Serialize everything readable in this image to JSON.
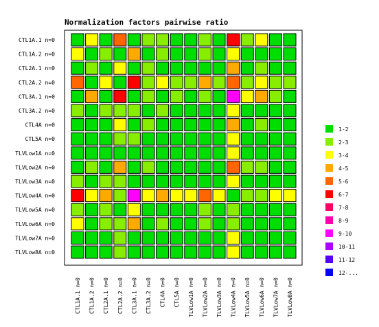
{
  "chart_data": {
    "type": "heatmap",
    "title": "Normalization factors pairwise ratio",
    "rows": [
      "CTL1A.1 n=0",
      "CTL1A.2 n=0",
      "CTL2A.1 n=0",
      "CTL2A.2 n=0",
      "CTL3A.1 n=0",
      "CTL3A.2 n=0",
      "CTL4A n=0",
      "CTL5A n=0",
      "TLVLow1A n=0",
      "TLVLow2A n=0",
      "TLVLow3A n=0",
      "TLVLow4A n=0",
      "TLVLow5A n=0",
      "TLVLow6A n=0",
      "TLVLow7A n=0",
      "TLVLow8A n=0"
    ],
    "columns": [
      "CTL1A.1 n=0",
      "CTL1A.2 n=0",
      "CTL2A.1 n=0",
      "CTL2A.2 n=0",
      "CTL3A.1 n=0",
      "CTL3A.2 n=0",
      "CTL4A n=0",
      "CTL5A n=0",
      "TLVLow1A n=0",
      "TLVLow2A n=0",
      "TLVLow3A n=0",
      "TLVLow4A n=0",
      "TLVLow5A n=0",
      "TLVLow6A n=0",
      "TLVLow7A n=0",
      "TLVLow8A n=0"
    ],
    "values": [
      [
        1,
        3,
        1,
        5,
        1,
        2,
        2,
        1,
        1,
        2,
        1,
        6,
        2,
        3,
        1,
        1
      ],
      [
        3,
        1,
        2,
        1,
        4,
        1,
        2,
        1,
        1,
        2,
        1,
        3,
        1,
        1,
        1,
        1
      ],
      [
        1,
        2,
        1,
        3,
        1,
        2,
        1,
        1,
        1,
        1,
        1,
        4,
        1,
        2,
        1,
        1
      ],
      [
        5,
        1,
        3,
        1,
        6,
        2,
        3,
        2,
        2,
        4,
        2,
        5,
        2,
        3,
        2,
        2
      ],
      [
        1,
        4,
        1,
        6,
        1,
        2,
        1,
        2,
        1,
        2,
        1,
        9,
        3,
        4,
        2,
        1
      ],
      [
        2,
        1,
        2,
        2,
        2,
        1,
        2,
        1,
        1,
        1,
        1,
        3,
        1,
        1,
        1,
        1
      ],
      [
        1,
        1,
        1,
        3,
        1,
        2,
        1,
        1,
        1,
        1,
        1,
        4,
        1,
        2,
        1,
        1
      ],
      [
        1,
        1,
        1,
        2,
        2,
        1,
        1,
        1,
        1,
        1,
        1,
        3,
        1,
        1,
        1,
        1
      ],
      [
        1,
        1,
        1,
        1,
        1,
        1,
        1,
        1,
        1,
        1,
        1,
        3,
        1,
        1,
        1,
        1
      ],
      [
        1,
        2,
        1,
        4,
        1,
        2,
        1,
        1,
        1,
        1,
        1,
        5,
        2,
        2,
        1,
        1
      ],
      [
        2,
        1,
        2,
        2,
        1,
        1,
        1,
        1,
        1,
        1,
        1,
        3,
        1,
        1,
        1,
        1
      ],
      [
        6,
        3,
        4,
        2,
        9,
        3,
        4,
        3,
        3,
        5,
        3,
        1,
        2,
        2,
        3,
        3
      ],
      [
        2,
        1,
        2,
        1,
        3,
        1,
        1,
        1,
        1,
        2,
        1,
        2,
        1,
        1,
        1,
        1
      ],
      [
        3,
        1,
        2,
        2,
        4,
        1,
        2,
        1,
        1,
        2,
        1,
        2,
        1,
        1,
        1,
        1
      ],
      [
        1,
        1,
        1,
        2,
        1,
        1,
        1,
        1,
        1,
        1,
        1,
        3,
        1,
        1,
        1,
        1
      ],
      [
        1,
        1,
        1,
        2,
        1,
        1,
        1,
        1,
        1,
        1,
        1,
        3,
        1,
        1,
        1,
        1
      ]
    ],
    "legend": {
      "placement": "right",
      "items": [
        {
          "label": "1-2",
          "color": "#00dd00"
        },
        {
          "label": "2-3",
          "color": "#88ee00"
        },
        {
          "label": "3-4",
          "color": "#ffff00"
        },
        {
          "label": "4-5",
          "color": "#ffaa00"
        },
        {
          "label": "5-6",
          "color": "#ff6600"
        },
        {
          "label": "6-7",
          "color": "#ff0000"
        },
        {
          "label": "7-8",
          "color": "#ff0066"
        },
        {
          "label": "8-9",
          "color": "#ff00aa"
        },
        {
          "label": "9-10",
          "color": "#ff00ff"
        },
        {
          "label": "10-11",
          "color": "#aa00ff"
        },
        {
          "label": "11-12",
          "color": "#5500ff"
        },
        {
          "label": "12-...",
          "color": "#0000ff"
        }
      ]
    }
  }
}
